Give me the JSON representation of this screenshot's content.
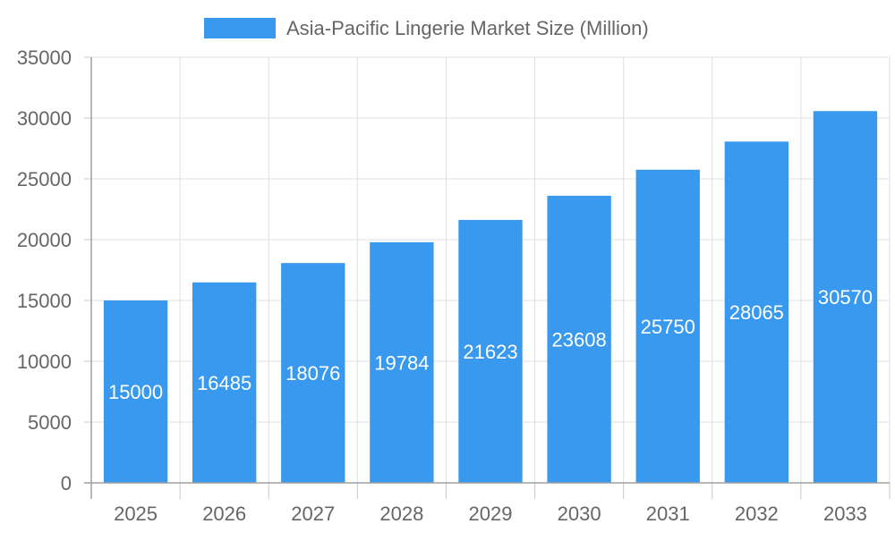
{
  "chart_data": {
    "type": "bar",
    "categories": [
      "2025",
      "2026",
      "2027",
      "2028",
      "2029",
      "2030",
      "2031",
      "2032",
      "2033"
    ],
    "series": [
      {
        "name": "Asia-Pacific Lingerie Market Size (Million)",
        "values": [
          15000,
          16485,
          18076,
          19784,
          21623,
          23608,
          25750,
          28065,
          30570
        ],
        "color": "#3899ee"
      }
    ],
    "ylim": [
      0,
      35000
    ],
    "yticks": [
      0,
      5000,
      10000,
      15000,
      20000,
      25000,
      30000,
      35000
    ],
    "grid": true,
    "legend_position": "top-center",
    "data_labels": "inside-center"
  }
}
